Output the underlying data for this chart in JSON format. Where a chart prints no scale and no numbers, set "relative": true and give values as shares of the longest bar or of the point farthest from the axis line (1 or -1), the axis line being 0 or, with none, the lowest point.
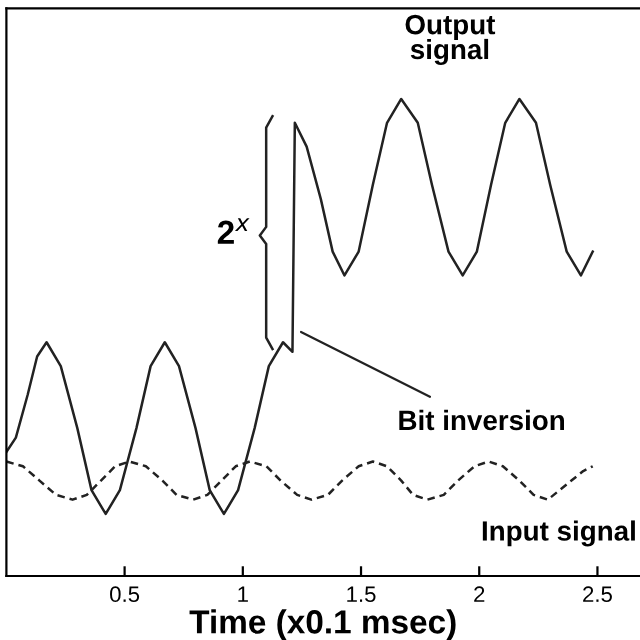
{
  "chart_data": {
    "type": "line",
    "relative": true,
    "xlabel": "Time (x0.1 msec)",
    "xlim": [
      0,
      2.68
    ],
    "xticks": [
      0.5,
      1,
      1.5,
      2,
      2.5
    ],
    "tick_labels": "x",
    "grid": false,
    "series": [
      {
        "color": "#222222",
        "line_style": "solid",
        "x": [
          0,
          0.04,
          0.09,
          0.13,
          0.17,
          0.23,
          0.3,
          0.36,
          0.42,
          0.48,
          0.55,
          0.61,
          0.67,
          0.73,
          0.8,
          0.86,
          0.92,
          0.98,
          1.05,
          1.11,
          1.17,
          1.21,
          1.22,
          1.27,
          1.33,
          1.38,
          1.43,
          1.49,
          1.55,
          1.61,
          1.67,
          1.74,
          1.8,
          1.87,
          1.93,
          1.99,
          2.05,
          2.11,
          2.17,
          2.24,
          2.3,
          2.37,
          2.43,
          2.48
        ],
        "values": [
          0.26,
          0.29,
          0.38,
          0.46,
          0.49,
          0.44,
          0.31,
          0.18,
          0.13,
          0.18,
          0.31,
          0.44,
          0.49,
          0.44,
          0.31,
          0.18,
          0.13,
          0.18,
          0.31,
          0.44,
          0.49,
          0.47,
          0.95,
          0.9,
          0.79,
          0.68,
          0.63,
          0.68,
          0.82,
          0.95,
          1.0,
          0.95,
          0.82,
          0.68,
          0.63,
          0.68,
          0.82,
          0.95,
          1.0,
          0.95,
          0.82,
          0.68,
          0.63,
          0.68
        ]
      },
      {
        "color": "#222222",
        "line_style": "dashed",
        "x": [
          0,
          0.07,
          0.14,
          0.21,
          0.28,
          0.34,
          0.4,
          0.46,
          0.52,
          0.59,
          0.66,
          0.72,
          0.79,
          0.85,
          0.91,
          0.97,
          1.03,
          1.1,
          1.16,
          1.23,
          1.29,
          1.36,
          1.42,
          1.49,
          1.55,
          1.61,
          1.67,
          1.72,
          1.78,
          1.85,
          1.91,
          1.98,
          2.04,
          2.1,
          2.17,
          2.23,
          2.29,
          2.34,
          2.39,
          2.44,
          2.48
        ],
        "values": [
          0.24,
          0.23,
          0.2,
          0.17,
          0.16,
          0.17,
          0.2,
          0.23,
          0.24,
          0.23,
          0.2,
          0.17,
          0.16,
          0.17,
          0.2,
          0.23,
          0.24,
          0.23,
          0.2,
          0.17,
          0.16,
          0.17,
          0.2,
          0.23,
          0.24,
          0.23,
          0.2,
          0.17,
          0.16,
          0.17,
          0.2,
          0.23,
          0.24,
          0.23,
          0.2,
          0.17,
          0.16,
          0.18,
          0.2,
          0.22,
          0.23
        ]
      }
    ],
    "annotations": [
      "Output signal",
      "2$^{x}$",
      "Bit inversion",
      "Input signal"
    ]
  }
}
